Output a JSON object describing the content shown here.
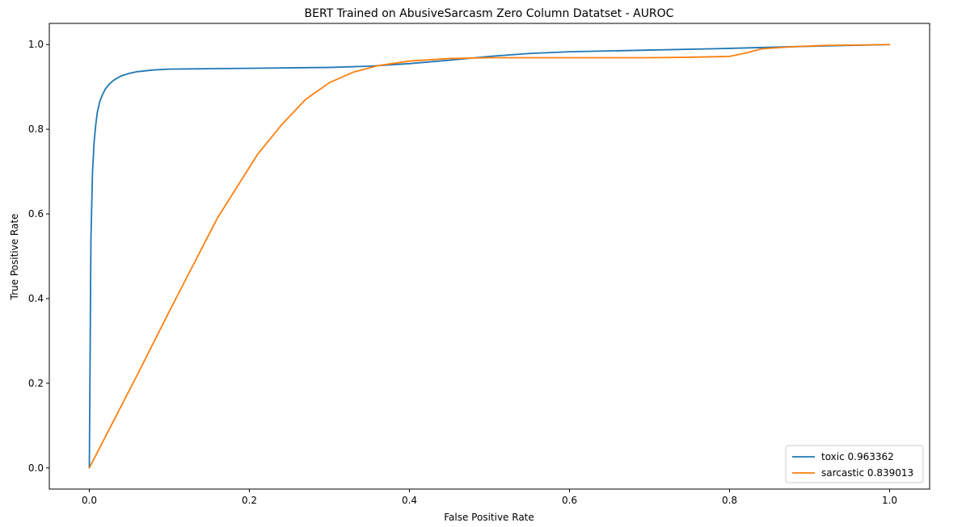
{
  "chart_data": {
    "type": "line",
    "title": "BERT Trained on AbusiveSarcasm Zero Column Datatset - AUROC",
    "xlabel": "False Positive Rate",
    "ylabel": "True Positive Rate",
    "xlim": [
      -0.05,
      1.05
    ],
    "ylim": [
      -0.05,
      1.05
    ],
    "xticks": [
      0.0,
      0.2,
      0.4,
      0.6,
      0.8,
      1.0
    ],
    "yticks": [
      0.0,
      0.2,
      0.4,
      0.6,
      0.8,
      1.0
    ],
    "xtick_labels": [
      "0.0",
      "0.2",
      "0.4",
      "0.6",
      "0.8",
      "1.0"
    ],
    "ytick_labels": [
      "0.0",
      "0.2",
      "0.4",
      "0.6",
      "0.8",
      "1.0"
    ],
    "grid": false,
    "legend_position": "lower-right",
    "series": [
      {
        "name": "toxic 0.963362",
        "color": "#1f77b4",
        "x": [
          0.0,
          0.002,
          0.004,
          0.006,
          0.008,
          0.01,
          0.013,
          0.016,
          0.02,
          0.025,
          0.03,
          0.035,
          0.04,
          0.05,
          0.06,
          0.08,
          0.1,
          0.15,
          0.2,
          0.3,
          0.35,
          0.4,
          0.45,
          0.5,
          0.55,
          0.6,
          0.7,
          0.8,
          0.9,
          1.0
        ],
        "y": [
          0.0,
          0.54,
          0.7,
          0.77,
          0.81,
          0.84,
          0.865,
          0.88,
          0.895,
          0.907,
          0.915,
          0.921,
          0.926,
          0.932,
          0.936,
          0.94,
          0.942,
          0.943,
          0.944,
          0.946,
          0.949,
          0.955,
          0.963,
          0.972,
          0.979,
          0.983,
          0.987,
          0.991,
          0.996,
          1.0
        ]
      },
      {
        "name": "sarcastic 0.839013",
        "color": "#ff7f0e",
        "x": [
          0.0,
          0.03,
          0.06,
          0.1,
          0.13,
          0.16,
          0.19,
          0.21,
          0.24,
          0.27,
          0.3,
          0.33,
          0.36,
          0.4,
          0.45,
          0.5,
          0.6,
          0.7,
          0.75,
          0.8,
          0.82,
          0.84,
          0.88,
          0.92,
          1.0
        ],
        "y": [
          0.0,
          0.11,
          0.22,
          0.37,
          0.48,
          0.59,
          0.68,
          0.74,
          0.81,
          0.87,
          0.91,
          0.935,
          0.95,
          0.961,
          0.967,
          0.969,
          0.969,
          0.969,
          0.97,
          0.972,
          0.98,
          0.99,
          0.995,
          0.998,
          1.0
        ]
      }
    ]
  }
}
